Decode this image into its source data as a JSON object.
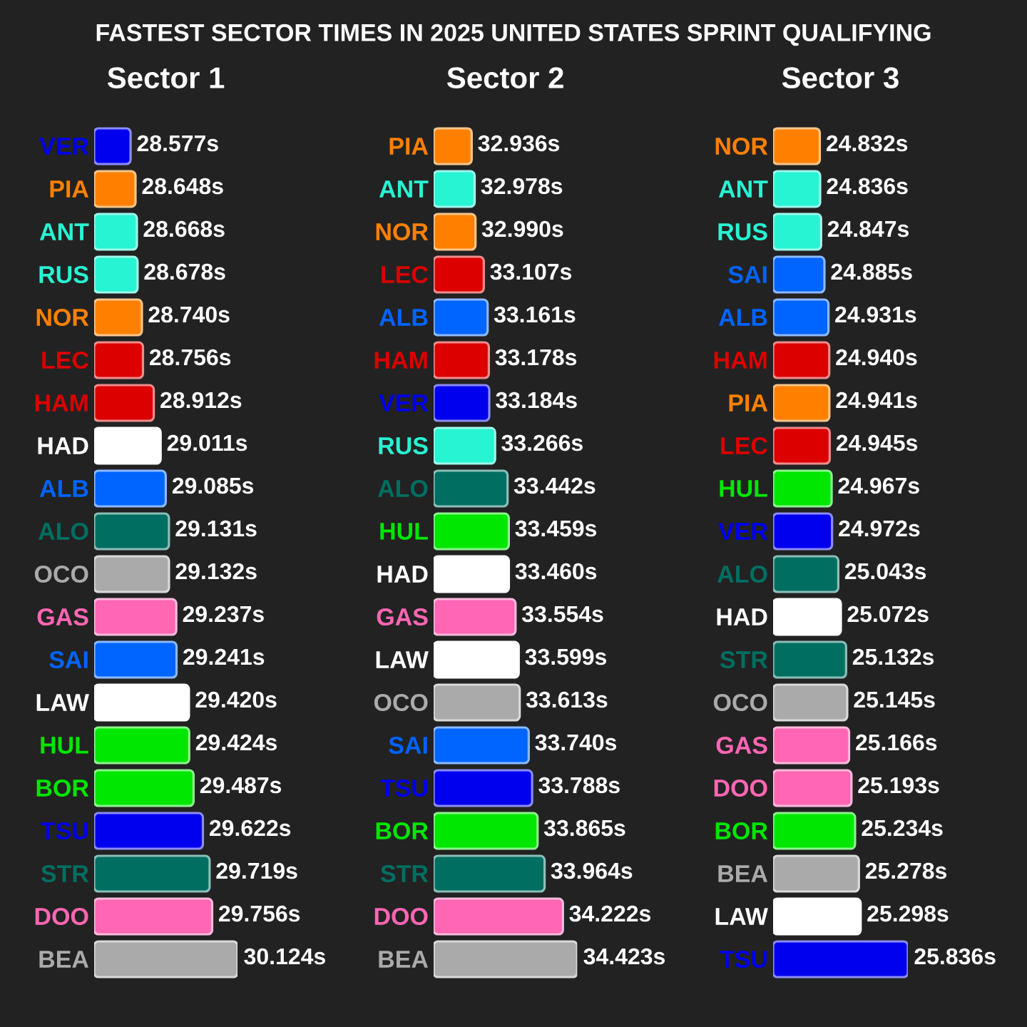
{
  "chart_data": [
    {
      "type": "bar",
      "orientation": "horizontal",
      "title": "FASTEST SECTOR TIMES IN 2025 UNITED STATES SPRINT QUALIFYING",
      "subtitle": "Sector 1",
      "tick_labels": "y",
      "xlim": [
        28.05,
        30.124
      ],
      "categories": [
        "VER",
        "PIA",
        "ANT",
        "RUS",
        "NOR",
        "LEC",
        "HAM",
        "HAD",
        "ALB",
        "ALO",
        "OCO",
        "GAS",
        "SAI",
        "LAW",
        "HUL",
        "BOR",
        "TSU",
        "STR",
        "DOO",
        "BEA"
      ],
      "values": [
        28.577,
        28.648,
        28.668,
        28.678,
        28.74,
        28.756,
        28.912,
        29.011,
        29.085,
        29.131,
        29.132,
        29.237,
        29.241,
        29.42,
        29.424,
        29.487,
        29.622,
        29.719,
        29.756,
        30.124
      ],
      "value_labels": [
        "28.577s",
        "28.648s",
        "28.668s",
        "28.678s",
        "28.740s",
        "28.756s",
        "28.912s",
        "29.011s",
        "29.085s",
        "29.131s",
        "29.132s",
        "29.237s",
        "29.241s",
        "29.420s",
        "29.424s",
        "29.487s",
        "29.622s",
        "29.719s",
        "29.756s",
        "30.124s"
      ],
      "colors": [
        "#0000ee",
        "#ff8000",
        "#27f4d2",
        "#27f4d2",
        "#ff8000",
        "#dc0000",
        "#dc0000",
        "#ffffff",
        "#0064ff",
        "#006f62",
        "#aaaaaa",
        "#ff66b3",
        "#0064ff",
        "#ffffff",
        "#00e701",
        "#00e701",
        "#0000ee",
        "#006f62",
        "#ff66b3",
        "#aaaaaa"
      ]
    },
    {
      "type": "bar",
      "orientation": "horizontal",
      "subtitle": "Sector 2",
      "tick_labels": "y",
      "xlim": [
        32.4,
        34.423
      ],
      "categories": [
        "PIA",
        "ANT",
        "NOR",
        "LEC",
        "ALB",
        "HAM",
        "VER",
        "RUS",
        "ALO",
        "HUL",
        "HAD",
        "GAS",
        "LAW",
        "OCO",
        "SAI",
        "TSU",
        "BOR",
        "STR",
        "DOO",
        "BEA"
      ],
      "values": [
        32.936,
        32.978,
        32.99,
        33.107,
        33.161,
        33.178,
        33.184,
        33.266,
        33.442,
        33.459,
        33.46,
        33.554,
        33.599,
        33.613,
        33.74,
        33.788,
        33.865,
        33.964,
        34.222,
        34.423
      ],
      "value_labels": [
        "32.936s",
        "32.978s",
        "32.990s",
        "33.107s",
        "33.161s",
        "33.178s",
        "33.184s",
        "33.266s",
        "33.442s",
        "33.459s",
        "33.460s",
        "33.554s",
        "33.599s",
        "33.613s",
        "33.740s",
        "33.788s",
        "33.865s",
        "33.964s",
        "34.222s",
        "34.423s"
      ],
      "colors": [
        "#ff8000",
        "#27f4d2",
        "#ff8000",
        "#dc0000",
        "#0064ff",
        "#dc0000",
        "#0000ee",
        "#27f4d2",
        "#006f62",
        "#00e701",
        "#ffffff",
        "#ff66b3",
        "#ffffff",
        "#aaaaaa",
        "#0064ff",
        "#0000ee",
        "#00e701",
        "#006f62",
        "#ff66b3",
        "#aaaaaa"
      ]
    },
    {
      "type": "bar",
      "orientation": "horizontal",
      "subtitle": "Sector 3",
      "tick_labels": "y",
      "xlim": [
        24.3,
        25.836
      ],
      "categories": [
        "NOR",
        "ANT",
        "RUS",
        "SAI",
        "ALB",
        "HAM",
        "PIA",
        "LEC",
        "HUL",
        "VER",
        "ALO",
        "HAD",
        "STR",
        "OCO",
        "GAS",
        "DOO",
        "BOR",
        "BEA",
        "LAW",
        "TSU"
      ],
      "values": [
        24.832,
        24.836,
        24.847,
        24.885,
        24.931,
        24.94,
        24.941,
        24.945,
        24.967,
        24.972,
        25.043,
        25.072,
        25.132,
        25.145,
        25.166,
        25.193,
        25.234,
        25.278,
        25.298,
        25.836
      ],
      "value_labels": [
        "24.832s",
        "24.836s",
        "24.847s",
        "24.885s",
        "24.931s",
        "24.940s",
        "24.941s",
        "24.945s",
        "24.967s",
        "24.972s",
        "25.043s",
        "25.072s",
        "25.132s",
        "25.145s",
        "25.166s",
        "25.193s",
        "25.234s",
        "25.278s",
        "25.298s",
        "25.836s"
      ],
      "colors": [
        "#ff8000",
        "#27f4d2",
        "#27f4d2",
        "#0064ff",
        "#0064ff",
        "#dc0000",
        "#ff8000",
        "#dc0000",
        "#00e701",
        "#0000ee",
        "#006f62",
        "#ffffff",
        "#006f62",
        "#aaaaaa",
        "#ff66b3",
        "#ff66b3",
        "#00e701",
        "#aaaaaa",
        "#ffffff",
        "#0000ee"
      ]
    }
  ]
}
